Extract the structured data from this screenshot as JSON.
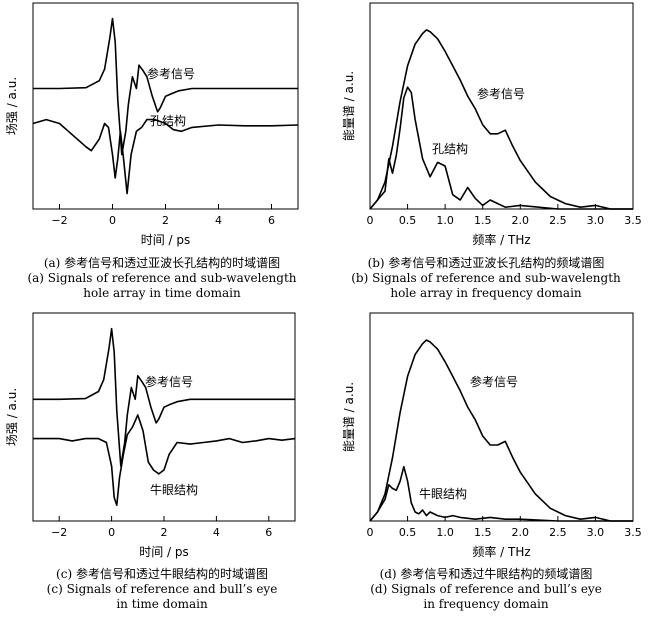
{
  "chart_data": [
    {
      "id": "a",
      "type": "line",
      "xlabel": "时间 / ps",
      "ylabel": "场强 / a.u.",
      "xlim": [
        -3,
        7
      ],
      "xticks": [
        -2,
        0,
        2,
        4,
        6
      ],
      "tick_labels": [
        "−2",
        "0",
        "2",
        "4",
        "6"
      ],
      "grid": false,
      "series": [
        {
          "name": "参考信号",
          "x": [
            -3,
            -2,
            -1,
            -0.5,
            -0.3,
            -0.1,
            0,
            0.1,
            0.2,
            0.35,
            0.5,
            0.6,
            0.75,
            0.9,
            1.0,
            1.15,
            1.3,
            1.5,
            1.7,
            1.8,
            2.0,
            2.2,
            2.5,
            3,
            4,
            5,
            6,
            7
          ],
          "y": [
            1.45,
            1.45,
            1.46,
            1.55,
            1.7,
            2.1,
            2.35,
            2.05,
            1.3,
            0.6,
            0.9,
            1.25,
            1.6,
            1.45,
            1.75,
            1.68,
            1.6,
            1.35,
            1.15,
            1.2,
            1.35,
            1.38,
            1.42,
            1.45,
            1.45,
            1.45,
            1.45,
            1.45
          ]
        },
        {
          "name": "孔结构",
          "x": [
            -3,
            -2.5,
            -2,
            -1.5,
            -1,
            -0.8,
            -0.5,
            -0.3,
            -0.15,
            0,
            0.1,
            0.2,
            0.3,
            0.4,
            0.55,
            0.7,
            0.9,
            1.1,
            1.3,
            1.6,
            2.0,
            2.3,
            2.6,
            3,
            4,
            5,
            6,
            7
          ],
          "y": [
            1.0,
            1.05,
            1.0,
            0.85,
            0.7,
            0.65,
            0.8,
            1.0,
            0.95,
            0.6,
            0.3,
            0.55,
            0.9,
            0.6,
            0.1,
            0.6,
            0.9,
            0.95,
            1.05,
            1.05,
            1.0,
            0.92,
            0.9,
            0.95,
            0.98,
            0.97,
            0.97,
            0.98
          ]
        }
      ]
    },
    {
      "id": "b",
      "type": "line",
      "xlabel": "频率 / THz",
      "ylabel": "能量谱 / a.u.",
      "xlim": [
        0,
        3.5
      ],
      "xticks": [
        0,
        0.5,
        1.0,
        1.5,
        2.0,
        2.5,
        3.0,
        3.5
      ],
      "tick_labels": [
        "0",
        "0.5",
        "1.0",
        "1.5",
        "2.0",
        "2.5",
        "3.0",
        "3.5"
      ],
      "grid": false,
      "series": [
        {
          "name": "参考信号",
          "x": [
            0,
            0.1,
            0.2,
            0.3,
            0.4,
            0.5,
            0.6,
            0.7,
            0.75,
            0.8,
            0.9,
            1.0,
            1.1,
            1.2,
            1.3,
            1.4,
            1.5,
            1.6,
            1.7,
            1.8,
            1.9,
            2.0,
            2.2,
            2.4,
            2.6,
            2.8,
            3.0,
            3.2,
            3.5
          ],
          "y": [
            0,
            0.05,
            0.15,
            0.35,
            0.6,
            0.8,
            0.92,
            0.98,
            1.0,
            0.99,
            0.95,
            0.88,
            0.8,
            0.72,
            0.63,
            0.56,
            0.47,
            0.42,
            0.42,
            0.44,
            0.35,
            0.27,
            0.15,
            0.07,
            0.03,
            0.01,
            0.02,
            0.0,
            0.0
          ]
        },
        {
          "name": "孔结构",
          "x": [
            0,
            0.1,
            0.2,
            0.25,
            0.3,
            0.35,
            0.4,
            0.45,
            0.5,
            0.55,
            0.6,
            0.7,
            0.8,
            0.9,
            1.0,
            1.1,
            1.2,
            1.3,
            1.4,
            1.5,
            1.6,
            1.7,
            1.8,
            2.0,
            2.5,
            3.0,
            3.5
          ],
          "y": [
            0,
            0.05,
            0.1,
            0.28,
            0.2,
            0.3,
            0.45,
            0.62,
            0.68,
            0.65,
            0.5,
            0.28,
            0.18,
            0.26,
            0.24,
            0.08,
            0.05,
            0.12,
            0.06,
            0.02,
            0.05,
            0.03,
            0.01,
            0.02,
            0.0,
            0.0,
            0.0
          ]
        }
      ]
    },
    {
      "id": "c",
      "type": "line",
      "xlabel": "时间 / ps",
      "ylabel": "场强 / a.u.",
      "xlim": [
        -3,
        7
      ],
      "xticks": [
        -2,
        0,
        2,
        4,
        6
      ],
      "tick_labels": [
        "−2",
        "0",
        "2",
        "4",
        "6"
      ],
      "grid": false,
      "series": [
        {
          "name": "参考信号",
          "x": [
            -3,
            -2,
            -1,
            -0.5,
            -0.3,
            -0.1,
            0,
            0.1,
            0.2,
            0.35,
            0.5,
            0.6,
            0.75,
            0.9,
            1.0,
            1.15,
            1.3,
            1.5,
            1.7,
            1.8,
            2.0,
            2.2,
            2.5,
            3,
            4,
            5,
            6,
            7
          ],
          "y": [
            1.45,
            1.45,
            1.46,
            1.55,
            1.7,
            2.1,
            2.35,
            2.05,
            1.3,
            0.6,
            0.9,
            1.25,
            1.6,
            1.45,
            1.75,
            1.68,
            1.6,
            1.35,
            1.15,
            1.2,
            1.35,
            1.38,
            1.42,
            1.45,
            1.45,
            1.45,
            1.45,
            1.45
          ]
        },
        {
          "name": "牛眼结构",
          "x": [
            -3,
            -2.5,
            -2,
            -1.5,
            -1,
            -0.5,
            -0.2,
            0,
            0.1,
            0.2,
            0.3,
            0.45,
            0.6,
            0.8,
            1.0,
            1.2,
            1.4,
            1.6,
            1.8,
            2.0,
            2.2,
            2.5,
            3,
            3.5,
            4,
            4.5,
            5,
            5.5,
            6,
            6.5,
            7
          ],
          "y": [
            0.95,
            0.95,
            0.95,
            0.92,
            0.95,
            0.95,
            0.9,
            0.6,
            0.2,
            0.1,
            0.45,
            0.75,
            1.0,
            1.1,
            1.25,
            1.05,
            0.65,
            0.55,
            0.5,
            0.55,
            0.75,
            0.9,
            0.88,
            0.9,
            0.92,
            0.95,
            0.9,
            0.92,
            0.95,
            0.93,
            0.95
          ]
        }
      ]
    },
    {
      "id": "d",
      "type": "line",
      "xlabel": "频率 / THz",
      "ylabel": "能量谱 / a.u.",
      "xlim": [
        0,
        3.5
      ],
      "xticks": [
        0,
        0.5,
        1.0,
        1.5,
        2.0,
        2.5,
        3.0,
        3.5
      ],
      "tick_labels": [
        "0",
        "0.5",
        "1.0",
        "1.5",
        "2.0",
        "2.5",
        "3.0",
        "3.5"
      ],
      "grid": false,
      "series": [
        {
          "name": "参考信号",
          "x": [
            0,
            0.1,
            0.2,
            0.3,
            0.4,
            0.5,
            0.6,
            0.7,
            0.75,
            0.8,
            0.9,
            1.0,
            1.1,
            1.2,
            1.3,
            1.4,
            1.5,
            1.6,
            1.7,
            1.8,
            1.9,
            2.0,
            2.2,
            2.4,
            2.6,
            2.8,
            3.0,
            3.2,
            3.5
          ],
          "y": [
            0,
            0.05,
            0.15,
            0.35,
            0.6,
            0.8,
            0.92,
            0.98,
            1.0,
            0.99,
            0.95,
            0.88,
            0.8,
            0.72,
            0.63,
            0.56,
            0.47,
            0.42,
            0.42,
            0.44,
            0.35,
            0.27,
            0.15,
            0.07,
            0.03,
            0.01,
            0.02,
            0.0,
            0.0
          ]
        },
        {
          "name": "牛眼结构",
          "x": [
            0,
            0.1,
            0.2,
            0.25,
            0.3,
            0.35,
            0.4,
            0.45,
            0.5,
            0.55,
            0.6,
            0.65,
            0.7,
            0.75,
            0.8,
            0.9,
            1.0,
            1.1,
            1.2,
            1.4,
            1.6,
            1.8,
            2.0,
            2.5,
            3.0,
            3.5
          ],
          "y": [
            0,
            0.05,
            0.12,
            0.2,
            0.18,
            0.17,
            0.22,
            0.3,
            0.22,
            0.1,
            0.05,
            0.04,
            0.06,
            0.03,
            0.05,
            0.03,
            0.02,
            0.03,
            0.02,
            0.01,
            0.02,
            0.01,
            0.01,
            0.0,
            0.0,
            0.0
          ]
        }
      ]
    }
  ],
  "captions": {
    "a": {
      "zh": "(a)  参考信号和透过亚波长孔结构的时域谱图",
      "en1": "(a)  Signals of reference and sub-wavelength",
      "en2": "hole array in time domain"
    },
    "b": {
      "zh": "(b)  参考信号和透过亚波长孔结构的频域谱图",
      "en1": "(b)  Signals of reference and sub-wavelength",
      "en2": "hole array in frequency domain"
    },
    "c": {
      "zh": "(c)  参考信号和透过牛眼结构的时域谱图",
      "en1": "(c)  Signals of reference and bull’s eye",
      "en2": "in time domain"
    },
    "d": {
      "zh": "(d)  参考信号和透过牛眼结构的频域谱图",
      "en1": "(d)  Signals of reference and bull’s eye",
      "en2": "in frequency domain"
    }
  }
}
